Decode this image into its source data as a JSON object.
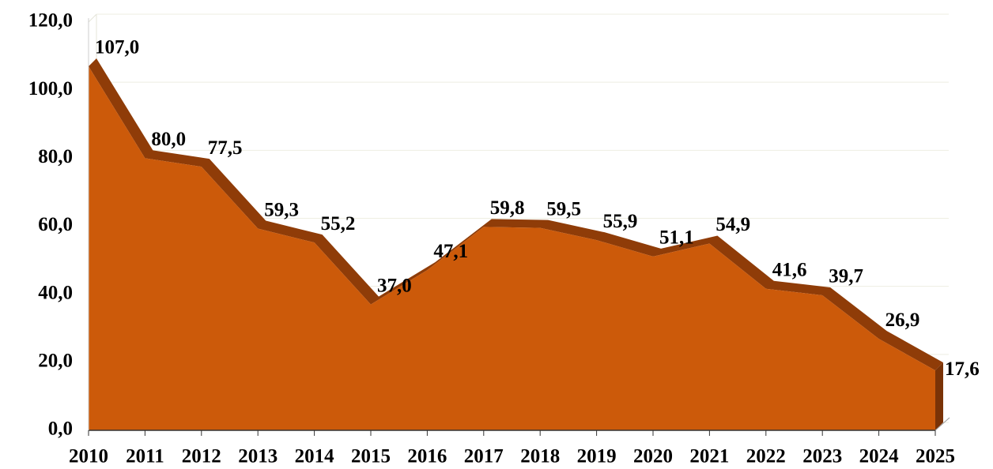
{
  "chart_data": {
    "type": "area",
    "categories": [
      "2010",
      "2011",
      "2012",
      "2013",
      "2014",
      "2015",
      "2016",
      "2017",
      "2018",
      "2019",
      "2020",
      "2021",
      "2022",
      "2023",
      "2024",
      "2025"
    ],
    "values": [
      107.0,
      80.0,
      77.5,
      59.3,
      55.2,
      37.0,
      47.1,
      59.8,
      59.5,
      55.9,
      51.1,
      54.9,
      41.6,
      39.7,
      26.9,
      17.6
    ],
    "value_labels": [
      "107,0",
      "80,0",
      "77,5",
      "59,3",
      "55,2",
      "37,0",
      "47,1",
      "59,8",
      "59,5",
      "55,9",
      "51,1",
      "54,9",
      "41,6",
      "39,7",
      "26,9",
      "17,6"
    ],
    "color": "#cc5a0a",
    "ylim": [
      0,
      120
    ],
    "yticks": [
      {
        "value": 0,
        "label": "0,0"
      },
      {
        "value": 20,
        "label": "20,0"
      },
      {
        "value": 40,
        "label": "40,0"
      },
      {
        "value": 60,
        "label": "60,0"
      },
      {
        "value": 80,
        "label": "80,0"
      },
      {
        "value": 100,
        "label": "100,0"
      },
      {
        "value": 120,
        "label": "120,0"
      }
    ],
    "grid": true
  }
}
